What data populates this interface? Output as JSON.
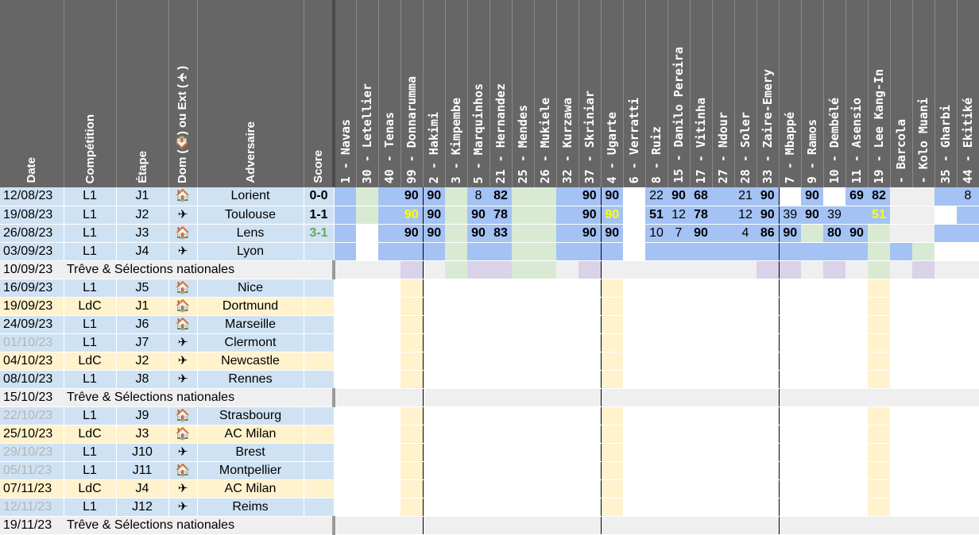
{
  "header": {
    "date": "Date",
    "competition": "Compétition",
    "etape": "Étape",
    "dom": "Dom (🏠) ou Ext (✈)",
    "adversaire": "Adversaire",
    "score": "Score"
  },
  "players": [
    "1 - Navas",
    "30 - Letellier",
    "40 - Tenas",
    "99 - Donnarumma",
    "2 - Hakimi",
    "3 - Kimpembe",
    "5 - Marquinhos",
    "21 - Hernandez",
    "25 - Mendes",
    "26 - Mukiele",
    "32 - Kurzawa",
    "37 - Skriniar",
    "4 - Ugarte",
    "6 - Verratti",
    "8 - Ruiz",
    "15 - Danilo Pereira",
    "17 - Vitinha",
    "27 - Ndour",
    "28 - Soler",
    "33 - Zaire-Emery",
    "7 - Mbappé",
    "9 - Ramos",
    "10 - Dembélé",
    "11 - Asensio",
    "19 - Lee Kang-In",
    "- Barcola",
    "- Kolo Muani",
    "35 - Gharbi",
    "44 - Ekitiké"
  ],
  "matches": [
    {
      "type": "l1",
      "date": "12/08/23",
      "comp": "L1",
      "etape": "J1",
      "home": true,
      "adv": "Lorient",
      "score": "0-0"
    },
    {
      "type": "l1",
      "date": "19/08/23",
      "comp": "L1",
      "etape": "J2",
      "home": false,
      "adv": "Toulouse",
      "score": "1-1"
    },
    {
      "type": "l1",
      "date": "26/08/23",
      "comp": "L1",
      "etape": "J3",
      "home": true,
      "adv": "Lens",
      "score": "3-1"
    },
    {
      "type": "l1",
      "date": "03/09/23",
      "comp": "L1",
      "etape": "J4",
      "home": false,
      "adv": "Lyon",
      "score": ""
    },
    {
      "type": "treve",
      "date": "10/09/23",
      "label": "Trêve & Sélections nationales"
    },
    {
      "type": "l1",
      "date": "16/09/23",
      "comp": "L1",
      "etape": "J5",
      "home": true,
      "adv": "Nice",
      "score": ""
    },
    {
      "type": "ldc",
      "date": "19/09/23",
      "comp": "LdC",
      "etape": "J1",
      "home": true,
      "adv": "Dortmund",
      "score": ""
    },
    {
      "type": "l1",
      "date": "24/09/23",
      "comp": "L1",
      "etape": "J6",
      "home": true,
      "adv": "Marseille",
      "score": ""
    },
    {
      "type": "l1",
      "date": "01/10/23",
      "grey": true,
      "comp": "L1",
      "etape": "J7",
      "home": false,
      "adv": "Clermont",
      "score": ""
    },
    {
      "type": "ldc",
      "date": "04/10/23",
      "comp": "LdC",
      "etape": "J2",
      "home": false,
      "adv": "Newcastle",
      "score": ""
    },
    {
      "type": "l1",
      "date": "08/10/23",
      "comp": "L1",
      "etape": "J8",
      "home": false,
      "adv": "Rennes",
      "score": ""
    },
    {
      "type": "treve",
      "date": "15/10/23",
      "label": "Trêve & Sélections nationales"
    },
    {
      "type": "l1",
      "date": "22/10/23",
      "grey": true,
      "comp": "L1",
      "etape": "J9",
      "home": true,
      "adv": "Strasbourg",
      "score": ""
    },
    {
      "type": "ldc",
      "date": "25/10/23",
      "comp": "LdC",
      "etape": "J3",
      "home": true,
      "adv": "AC Milan",
      "score": ""
    },
    {
      "type": "l1",
      "date": "29/10/23",
      "grey": true,
      "comp": "L1",
      "etape": "J10",
      "home": false,
      "adv": "Brest",
      "score": ""
    },
    {
      "type": "l1",
      "date": "05/11/23",
      "grey": true,
      "comp": "L1",
      "etape": "J11",
      "home": true,
      "adv": "Montpellier",
      "score": ""
    },
    {
      "type": "ldc",
      "date": "07/11/23",
      "comp": "LdC",
      "etape": "J4",
      "home": false,
      "adv": "AC Milan",
      "score": ""
    },
    {
      "type": "l1",
      "date": "12/11/23",
      "grey": true,
      "comp": "L1",
      "etape": "J12",
      "home": false,
      "adv": "Reims",
      "score": ""
    },
    {
      "type": "treve",
      "date": "19/11/23",
      "label": "Trêve & Sélections nationales"
    }
  ],
  "minutes": [
    [
      "",
      "",
      "",
      "90",
      "90",
      "",
      "8",
      "82",
      "",
      "",
      "",
      "90",
      "90",
      "",
      "22",
      "90",
      "68",
      "",
      "21",
      "90",
      "",
      "90",
      "",
      "69",
      "82",
      "",
      "",
      "",
      "8"
    ],
    [
      "",
      "",
      "",
      "90",
      "90",
      "",
      "90",
      "78",
      "",
      "",
      "",
      "90",
      "90",
      "",
      "51",
      "12",
      "78",
      "",
      "12",
      "90",
      "39",
      "90",
      "39",
      "",
      "51",
      "",
      "",
      "",
      ""
    ],
    [
      "",
      "",
      "",
      "90",
      "90",
      "",
      "90",
      "83",
      "",
      "",
      "",
      "90",
      "90",
      "",
      "10",
      "7",
      "90",
      "",
      "4",
      "86",
      "90",
      "",
      "80",
      "90",
      "",
      "",
      "",
      "",
      ""
    ],
    [
      "",
      "",
      "",
      "",
      "",
      "",
      "",
      "",
      "",
      "",
      "",
      "",
      "",
      "",
      "",
      "",
      "",
      "",
      "",
      "",
      "",
      "",
      "",
      "",
      "",
      "",
      "",
      "",
      ""
    ]
  ],
  "cell_bold": [
    [
      false,
      false,
      false,
      true,
      true,
      false,
      false,
      true,
      false,
      false,
      false,
      true,
      true,
      false,
      false,
      true,
      true,
      false,
      false,
      true,
      false,
      true,
      false,
      true,
      true,
      false,
      false,
      false,
      false
    ],
    [
      false,
      false,
      false,
      true,
      true,
      false,
      true,
      true,
      false,
      false,
      false,
      true,
      true,
      false,
      true,
      false,
      true,
      false,
      false,
      true,
      false,
      true,
      false,
      false,
      true,
      false,
      false,
      false,
      false
    ],
    [
      false,
      false,
      false,
      true,
      true,
      false,
      true,
      true,
      false,
      false,
      false,
      true,
      true,
      false,
      false,
      false,
      true,
      false,
      false,
      true,
      true,
      false,
      true,
      true,
      false,
      false,
      false,
      false,
      false
    ],
    [
      false,
      false,
      false,
      false,
      false,
      false,
      false,
      false,
      false,
      false,
      false,
      false,
      false,
      false,
      false,
      false,
      false,
      false,
      false,
      false,
      false,
      false,
      false,
      false,
      false,
      false,
      false,
      false,
      false
    ]
  ],
  "cell_yellow_text": [
    [
      false,
      false,
      false,
      false,
      false,
      false,
      false,
      false,
      false,
      false,
      false,
      false,
      false,
      false,
      false,
      false,
      false,
      false,
      false,
      false,
      false,
      false,
      false,
      false,
      false,
      false,
      false,
      false,
      false
    ],
    [
      false,
      false,
      false,
      true,
      false,
      false,
      false,
      false,
      false,
      false,
      false,
      false,
      true,
      false,
      false,
      false,
      false,
      false,
      false,
      false,
      false,
      false,
      false,
      false,
      true,
      false,
      false,
      false,
      false
    ],
    [
      false,
      false,
      false,
      false,
      false,
      false,
      false,
      false,
      false,
      false,
      false,
      false,
      false,
      false,
      false,
      false,
      false,
      false,
      false,
      false,
      false,
      false,
      false,
      false,
      false,
      false,
      false,
      false,
      false
    ],
    [
      false,
      false,
      false,
      false,
      false,
      false,
      false,
      false,
      false,
      false,
      false,
      false,
      false,
      false,
      false,
      false,
      false,
      false,
      false,
      false,
      false,
      false,
      false,
      false,
      false,
      false,
      false,
      false,
      false
    ]
  ],
  "cell_bg": [
    [
      "bl",
      "gr",
      "bl",
      "bl",
      "bl",
      "gr",
      "bl",
      "bl",
      "gr",
      "gr",
      "bl",
      "bl",
      "bl",
      "wh",
      "bl",
      "bl",
      "bl",
      "bl",
      "bl",
      "bl",
      "wh",
      "bl",
      "wh",
      "bl",
      "bl",
      "gy",
      "gy",
      "bl",
      "bl"
    ],
    [
      "bl",
      "gr",
      "bl",
      "bl",
      "bl",
      "gr",
      "bl",
      "bl",
      "gr",
      "gr",
      "bl",
      "bl",
      "bl",
      "wh",
      "bl",
      "bl",
      "bl",
      "bl",
      "bl",
      "bl",
      "bl",
      "bl",
      "bl",
      "bl",
      "bl",
      "gy",
      "gy",
      "wh",
      "bl"
    ],
    [
      "bl",
      "wh",
      "bl",
      "bl",
      "bl",
      "gr",
      "bl",
      "bl",
      "gr",
      "gr",
      "bl",
      "bl",
      "bl",
      "wh",
      "bl",
      "bl",
      "bl",
      "bl",
      "bl",
      "bl",
      "bl",
      "gr",
      "bl",
      "bl",
      "gr",
      "gy",
      "gy",
      "bl",
      "bl"
    ],
    [
      "bl",
      "wh",
      "bl",
      "bl",
      "bl",
      "gr",
      "bl",
      "bl",
      "gr",
      "gr",
      "bl",
      "bl",
      "bl",
      "wh",
      "bl",
      "bl",
      "bl",
      "bl",
      "bl",
      "bl",
      "bl",
      "bl",
      "bl",
      "bl",
      "gr",
      "bl",
      "gr",
      "wh",
      "wh"
    ],
    [
      "gy",
      "gy",
      "gy",
      "pu",
      "gy",
      "gr",
      "pu",
      "pu",
      "gr",
      "gr",
      "gy",
      "pu",
      "gy",
      "gy",
      "gy",
      "gy",
      "gy",
      "gy",
      "gy",
      "pu",
      "pu",
      "gy",
      "pu",
      "gy",
      "gr",
      "gy",
      "pu",
      "gy",
      "gy"
    ]
  ],
  "colors": {
    "header_bg": "#666666",
    "l1_row": "#cfe2f3",
    "ldc_row": "#fff2cc",
    "treve_row": "#efefef",
    "played": "#a4c2f4",
    "absent_green": "#d9ead3",
    "selection_purple": "#d9d2e9",
    "suspension_yellow": "#fff2cc",
    "sub_text_yellow": "#ffff00",
    "score_green": "#6aa84f"
  },
  "icons": {
    "home": "house-icon",
    "away": "plane-icon"
  },
  "suspended_columns": [
    3,
    12,
    24
  ]
}
